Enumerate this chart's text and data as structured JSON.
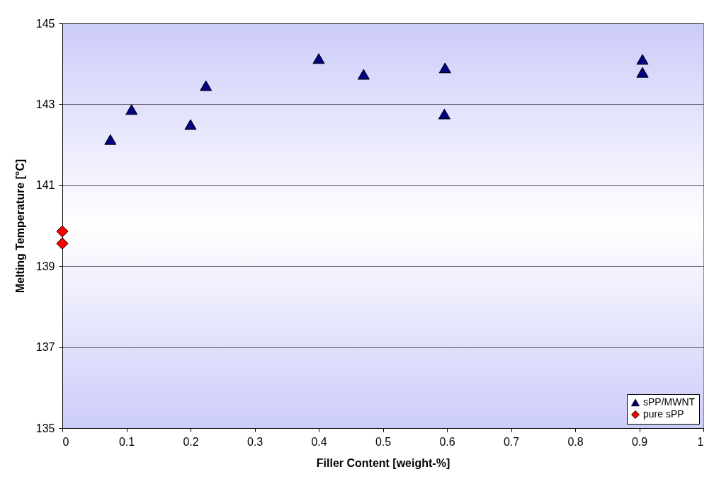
{
  "chart_data": {
    "type": "scatter",
    "xlabel": "Filler Content [weight-%]",
    "ylabel": "Melting Temperature [°C]",
    "xlim": [
      0,
      1
    ],
    "xticks": [
      0,
      0.1,
      0.2,
      0.3,
      0.4,
      0.5,
      0.6,
      0.7,
      0.8,
      0.9,
      1
    ],
    "ylim": [
      135,
      145
    ],
    "yticks": [
      135,
      137,
      139,
      141,
      143,
      145
    ],
    "grid": "y",
    "legend": "bottom right",
    "series": [
      {
        "name": "sPP/MWNT",
        "color": "#000080",
        "marker": "triangle",
        "x": [
          0.075,
          0.108,
          0.2,
          0.224,
          0.4,
          0.47,
          0.597,
          0.596,
          0.905,
          0.905
        ],
        "values": [
          142.13,
          142.87,
          142.5,
          143.46,
          144.13,
          143.74,
          143.9,
          142.76,
          144.11,
          143.79
        ]
      },
      {
        "name": "pure sPP",
        "color": "#ff0000",
        "marker": "diamond",
        "x": [
          0,
          0
        ],
        "values": [
          139.86,
          139.56
        ]
      }
    ]
  }
}
